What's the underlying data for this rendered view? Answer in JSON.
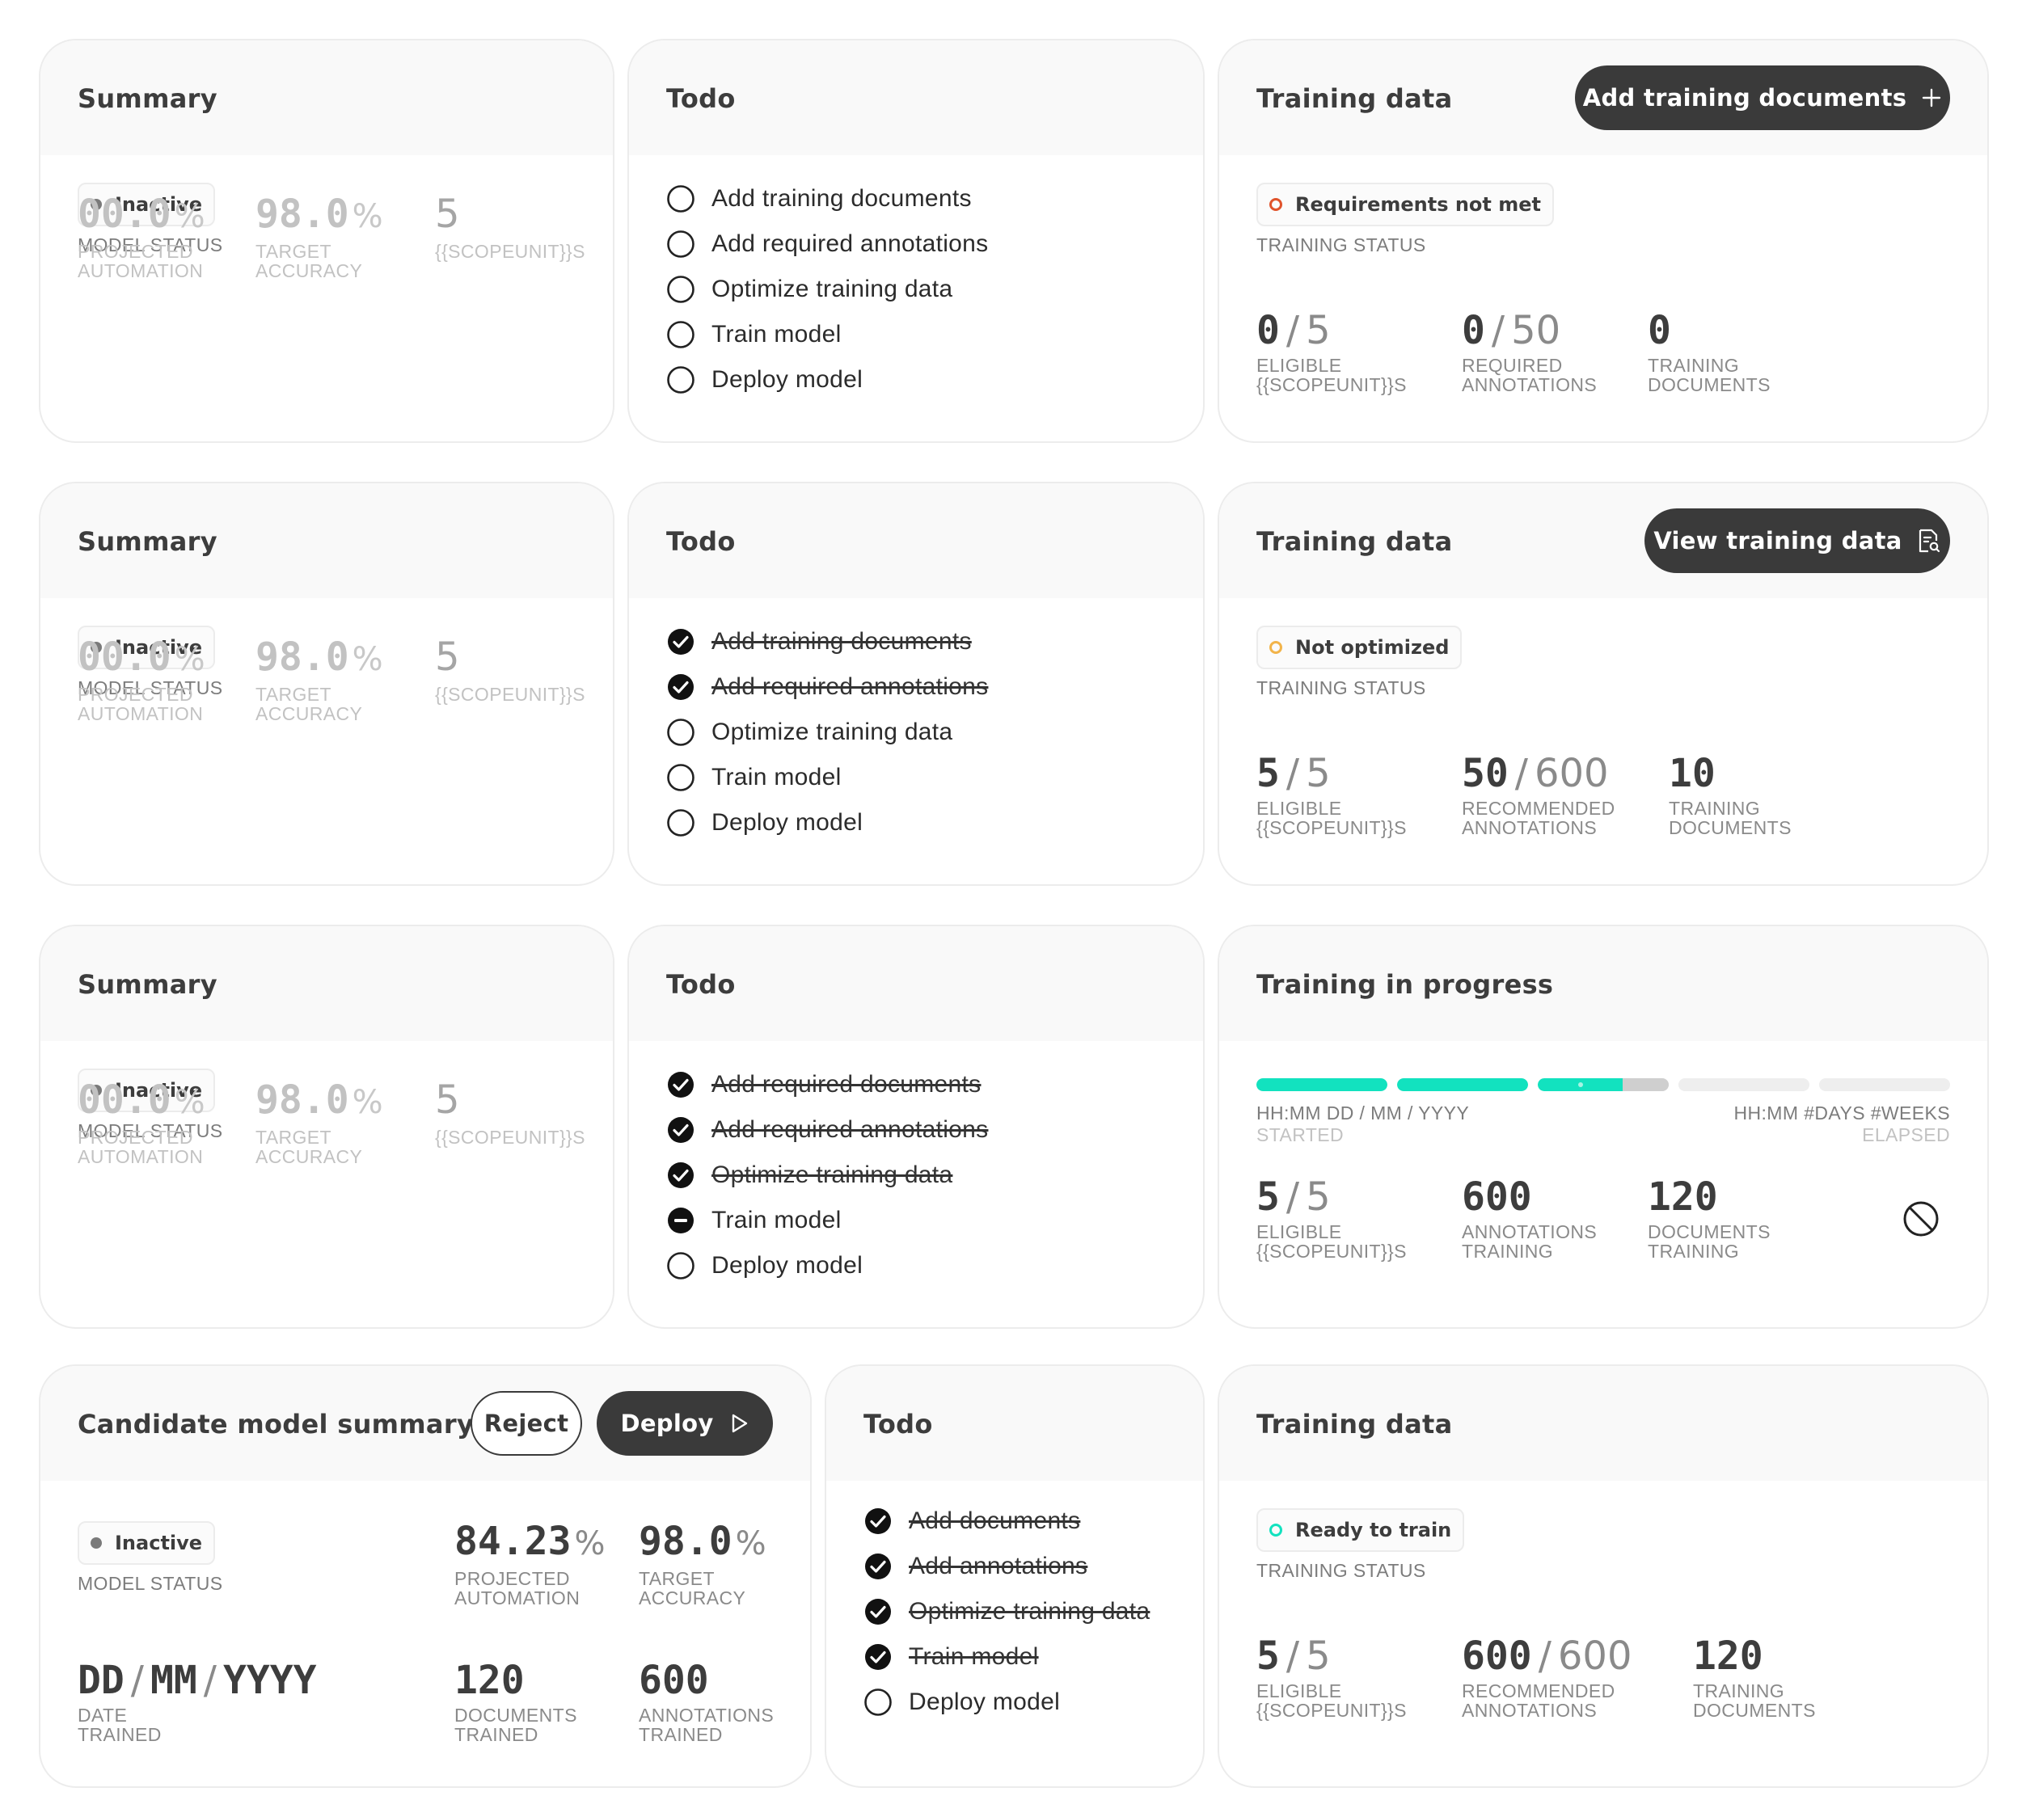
{
  "colors": {
    "card_border": "#ececec",
    "header_bg": "#f9f9f9",
    "button_dark": "#3a3a3a",
    "status_inactive": "#7a7a7a",
    "status_requirements_not_met": "#e0532b",
    "status_not_optimized": "#f2b44a",
    "status_ready": "#12e2bf",
    "progress_fill": "#12e2bf"
  },
  "rows": [
    {
      "summary": {
        "title": "Summary",
        "status_label": "Inactive",
        "status_caption": "MODEL STATUS",
        "metrics": [
          {
            "value": "00.0",
            "unit": "%",
            "caption1": "PROJECTED",
            "caption2": "AUTOMATION"
          },
          {
            "value": "98.0",
            "unit": "%",
            "caption1": "TARGET",
            "caption2": "ACCURACY"
          },
          {
            "value": "5",
            "unit": "",
            "caption1": "{{SCOPEUNIT}}S",
            "caption2": ""
          }
        ]
      },
      "todo": {
        "title": "Todo",
        "items": [
          {
            "label": "Add training documents",
            "state": "open"
          },
          {
            "label": "Add required annotations",
            "state": "open"
          },
          {
            "label": "Optimize training data",
            "state": "open"
          },
          {
            "label": "Train model",
            "state": "open"
          },
          {
            "label": "Deploy model",
            "state": "open"
          }
        ]
      },
      "training": {
        "title": "Training data",
        "button_label": "Add training documents",
        "button_icon": "plus-icon",
        "status_label": "Requirements not met",
        "status_caption": "TRAINING STATUS",
        "metrics": [
          {
            "a": "0",
            "b": "5",
            "caption1": "ELIGIBLE",
            "caption2": "{{SCOPEUNIT}}S"
          },
          {
            "a": "0",
            "b": "50",
            "caption1": "REQUIRED",
            "caption2": "ANNOTATIONS"
          },
          {
            "a": "0",
            "b": "",
            "caption1": "TRAINING",
            "caption2": "DOCUMENTS"
          }
        ]
      }
    },
    {
      "summary": {
        "title": "Summary",
        "status_label": "Inactive",
        "status_caption": "MODEL STATUS",
        "metrics": [
          {
            "value": "00.0",
            "unit": "%",
            "caption1": "PROJECTED",
            "caption2": "AUTOMATION"
          },
          {
            "value": "98.0",
            "unit": "%",
            "caption1": "TARGET",
            "caption2": "ACCURACY"
          },
          {
            "value": "5",
            "unit": "",
            "caption1": "{{SCOPEUNIT}}S",
            "caption2": ""
          }
        ]
      },
      "todo": {
        "title": "Todo",
        "items": [
          {
            "label": "Add training documents",
            "state": "done"
          },
          {
            "label": "Add required annotations",
            "state": "done"
          },
          {
            "label": "Optimize training data",
            "state": "open"
          },
          {
            "label": "Train model",
            "state": "open"
          },
          {
            "label": "Deploy model",
            "state": "open"
          }
        ]
      },
      "training": {
        "title": "Training data",
        "button_label": "View training data",
        "button_icon": "document-search-icon",
        "status_label": "Not optimized",
        "status_caption": "TRAINING STATUS",
        "metrics": [
          {
            "a": "5",
            "b": "5",
            "caption1": "ELIGIBLE",
            "caption2": "{{SCOPEUNIT}}S"
          },
          {
            "a": "50",
            "b": "600",
            "caption1": "RECOMMENDED",
            "caption2": "ANNOTATIONS"
          },
          {
            "a": "10",
            "b": "",
            "caption1": "TRAINING",
            "caption2": "DOCUMENTS"
          }
        ]
      }
    },
    {
      "summary": {
        "title": "Summary",
        "status_label": "Inactive",
        "status_caption": "MODEL STATUS",
        "metrics": [
          {
            "value": "00.0",
            "unit": "%",
            "caption1": "PROJECTED",
            "caption2": "AUTOMATION"
          },
          {
            "value": "98.0",
            "unit": "%",
            "caption1": "TARGET",
            "caption2": "ACCURACY"
          },
          {
            "value": "5",
            "unit": "",
            "caption1": "{{SCOPEUNIT}}S",
            "caption2": ""
          }
        ]
      },
      "todo": {
        "title": "Todo",
        "items": [
          {
            "label": "Add required documents",
            "state": "done"
          },
          {
            "label": "Add required annotations",
            "state": "done"
          },
          {
            "label": "Optimize training data",
            "state": "done"
          },
          {
            "label": "Train model",
            "state": "in-progress"
          },
          {
            "label": "Deploy model",
            "state": "open"
          }
        ]
      },
      "progress": {
        "title": "Training in progress",
        "segments_total": 5,
        "progress_fraction": 0.53,
        "started_value": "HH:MM DD / MM / YYYY",
        "started_caption": "STARTED",
        "elapsed_value": "HH:MM #DAYS #WEEKS",
        "elapsed_caption": "ELAPSED",
        "cancel_icon": "cancel-icon",
        "metrics": [
          {
            "a": "5",
            "b": "5",
            "caption1": "ELIGIBLE",
            "caption2": "{{SCOPEUNIT}}S"
          },
          {
            "a": "600",
            "b": "",
            "caption1": "ANNOTATIONS",
            "caption2": "TRAINING"
          },
          {
            "a": "120",
            "b": "",
            "caption1": "DOCUMENTS",
            "caption2": "TRAINING"
          }
        ]
      }
    }
  ],
  "candidate": {
    "title": "Candidate model summary",
    "reject_label": "Reject",
    "deploy_label": "Deploy",
    "deploy_icon": "play-icon",
    "status_label": "Inactive",
    "status_caption": "MODEL STATUS",
    "metric_automation": {
      "value": "84.23",
      "unit": "%",
      "caption1": "PROJECTED",
      "caption2": "AUTOMATION"
    },
    "metric_accuracy": {
      "value": "98.0",
      "unit": "%",
      "caption1": "TARGET",
      "caption2": "ACCURACY"
    },
    "date": {
      "dd": "DD",
      "mm": "MM",
      "yyyy": "YYYY",
      "caption1": "DATE",
      "caption2": "TRAINED"
    },
    "metric_docs": {
      "value": "120",
      "caption1": "DOCUMENTS",
      "caption2": "TRAINED"
    },
    "metric_annotations": {
      "value": "600",
      "caption1": "ANNOTATIONS",
      "caption2": "TRAINED"
    }
  },
  "todo4": {
    "title": "Todo",
    "items": [
      {
        "label": "Add documents",
        "state": "done"
      },
      {
        "label": "Add annotations",
        "state": "done"
      },
      {
        "label": "Optimize training data",
        "state": "done"
      },
      {
        "label": "Train model",
        "state": "done"
      },
      {
        "label": "Deploy model",
        "state": "open"
      }
    ]
  },
  "training4": {
    "title": "Training data",
    "status_label": "Ready to train",
    "status_caption": "TRAINING STATUS",
    "metrics": [
      {
        "a": "5",
        "b": "5",
        "caption1": "ELIGIBLE",
        "caption2": "{{SCOPEUNIT}}S"
      },
      {
        "a": "600",
        "b": "600",
        "caption1": "RECOMMENDED",
        "caption2": "ANNOTATIONS"
      },
      {
        "a": "120",
        "b": "",
        "caption1": "TRAINING",
        "caption2": "DOCUMENTS"
      }
    ]
  }
}
